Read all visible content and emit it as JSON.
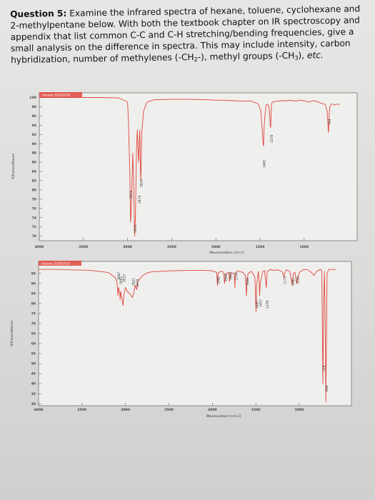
{
  "question": {
    "label": "Question 5:",
    "p1": " Examine the infrared spectra of hexane, toluene, cyclohexane and 2-methylpentane below.  With both the textbook chapter on IR spectroscopy and appendix that list common C-C and C-H stretching/bending frequencies, give a small analysis on the difference in spectra.  This may include intensity, carbon hybridization, number of methylenes (-CH",
    "sub2": "2",
    "p2": "-), methyl groups (-CH",
    "sub3": "3",
    "p3": "), ",
    "etc": "etc."
  },
  "colors": {
    "spectrum": "#e0463c",
    "axis": "#666666",
    "paper": "#e3e3e1"
  },
  "chart_data": [
    {
      "type": "line",
      "name": "hexane spectrum",
      "legend_text": "hexane 5/19/2016",
      "xlabel": "Wavenumbers (cm-1)",
      "ylabel": "%Transmittance",
      "xlim": [
        4000,
        400
      ],
      "ylim": [
        69,
        101
      ],
      "xticks": [
        4000,
        3500,
        3000,
        2500,
        2000,
        1500,
        1000
      ],
      "yticks": [
        100,
        98,
        96,
        94,
        92,
        90,
        88,
        86,
        84,
        82,
        80,
        78,
        76,
        74,
        72,
        70
      ],
      "series": [
        {
          "x": [
            4000,
            3800,
            3500,
            3300,
            3100,
            3000,
            2990,
            2975,
            2966,
            2960,
            2950,
            2940,
            2930,
            2920,
            2910,
            2900,
            2890,
            2880,
            2874,
            2868,
            2862,
            2855,
            2850,
            2840,
            2820,
            2780,
            2700,
            2500,
            2300,
            2100,
            2000,
            1900,
            1800,
            1700,
            1600,
            1520,
            1490,
            1475,
            1465,
            1460,
            1455,
            1445,
            1430,
            1415,
            1400,
            1390,
            1385,
            1380,
            1379,
            1378,
            1375,
            1370,
            1360,
            1340,
            1300,
            1250,
            1200,
            1150,
            1100,
            1050,
            1000,
            950,
            900,
            850,
            800,
            760,
            740,
            730,
            726,
            724,
            722,
            718,
            710,
            690,
            650,
            620,
            600
          ],
          "y": [
            100,
            100,
            100,
            100,
            99.9,
            99,
            95,
            84,
            73,
            75,
            82,
            88,
            80,
            70,
            75,
            88,
            93,
            88,
            86,
            90,
            93,
            85,
            82,
            92,
            97,
            99,
            99.5,
            99.6,
            99.6,
            99.5,
            99.4,
            99.4,
            99.3,
            99.2,
            99.2,
            98.6,
            97,
            93,
            90,
            89.5,
            93,
            96,
            98.4,
            98.5,
            98.2,
            96,
            94,
            93.5,
            93.5,
            94,
            96,
            98.5,
            99,
            99.1,
            99.2,
            99.3,
            99.3,
            99.4,
            99.2,
            99.4,
            99.3,
            99.0,
            99.3,
            99.1,
            98.7,
            98.5,
            97,
            94,
            92.5,
            92.5,
            93.5,
            96,
            98,
            98.6,
            98.4,
            98.6,
            98.4
          ]
        }
      ],
      "peak_labels": [
        "2974",
        "2923",
        "2874",
        "2855",
        "1465",
        "1378",
        "724"
      ]
    },
    {
      "type": "line",
      "name": "toluene spectrum",
      "legend_text": "toluene 5/19/2016",
      "xlabel": "Wavenumbers (cm-1)",
      "ylabel": "%Transmittance",
      "xlim": [
        4000,
        400
      ],
      "ylim": [
        29,
        101
      ],
      "xticks": [
        4000,
        3500,
        3000,
        2500,
        2000,
        1500,
        1000
      ],
      "yticks": [
        95,
        90,
        85,
        80,
        75,
        70,
        65,
        60,
        55,
        50,
        45,
        40,
        35,
        30
      ],
      "series": [
        {
          "x": [
            4000,
            3800,
            3600,
            3400,
            3200,
            3120,
            3100,
            3090,
            3087,
            3080,
            3065,
            3062,
            3055,
            3035,
            3027,
            3020,
            3000,
            2980,
            2950,
            2921,
            2900,
            2890,
            2870,
            2860,
            2800,
            2750,
            2700,
            2500,
            2300,
            2100,
            2000,
            1950,
            1942,
            1935,
            1900,
            1870,
            1860,
            1840,
            1810,
            1803,
            1790,
            1750,
            1740,
            1737,
            1720,
            1700,
            1650,
            1620,
            1608,
            1600,
            1590,
            1550,
            1510,
            1497,
            1490,
            1470,
            1460,
            1457,
            1450,
            1420,
            1400,
            1379,
            1370,
            1330,
            1300,
            1250,
            1200,
            1180,
            1175,
            1170,
            1150,
            1110,
            1081,
            1070,
            1050,
            1030,
            1000,
            950,
            900,
            860,
            830,
            800,
            760,
            740,
            729,
            720,
            710,
            700,
            694,
            690,
            680,
            660,
            640,
            620,
            600,
            580
          ],
          "y": [
            97,
            97,
            96.8,
            96.5,
            95.5,
            93,
            91,
            87,
            84,
            88,
            85,
            82,
            86,
            81,
            79,
            84,
            88,
            86,
            85,
            83,
            86,
            89,
            87,
            91,
            94,
            95.3,
            95.8,
            96.3,
            96.5,
            96.5,
            96.3,
            95.5,
            89,
            95,
            96.2,
            95.5,
            90,
            95,
            95.5,
            91,
            95,
            95.2,
            88,
            94,
            96,
            96.3,
            95.5,
            94,
            84,
            91,
            95,
            96,
            93,
            76,
            90,
            96,
            90,
            84,
            90,
            96,
            96.5,
            88,
            96,
            97,
            96.5,
            96.8,
            96,
            94,
            93,
            95,
            96.8,
            96,
            89,
            95,
            95.5,
            90,
            95.5,
            97,
            96.8,
            95.5,
            94,
            96,
            97,
            96.5,
            40,
            80,
            96,
            62,
            31,
            50,
            95,
            97,
            97,
            97,
            97,
            96.8
          ]
        }
      ],
      "peak_labels": [
        "3087",
        "3062",
        "3027",
        "2921",
        "2874",
        "1942",
        "1858",
        "1803",
        "1737",
        "1608",
        "1497",
        "1457",
        "1379",
        "1175",
        "1081",
        "1030",
        "729",
        "694"
      ]
    }
  ]
}
